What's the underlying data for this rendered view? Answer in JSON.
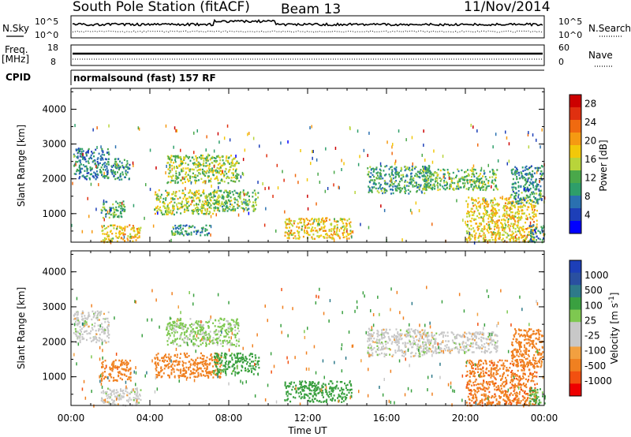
{
  "header": {
    "station": "South Pole Station (fitACF)",
    "beam": "Beam 13",
    "date": "11/Nov/2014"
  },
  "noise_panel": {
    "left_label": "N.Sky",
    "right_label": "N.Search",
    "left_ticks": [
      "10^5",
      "10^0"
    ],
    "right_ticks": [
      "10^5",
      "10^0"
    ]
  },
  "freq_panel": {
    "left_label": "Freq.",
    "left_unit": "[MHz]",
    "right_label": "Nave",
    "left_ticks": [
      "18",
      "8"
    ],
    "right_ticks": [
      "60",
      "0"
    ]
  },
  "cpid": {
    "label": "CPID",
    "program": "normalsound (fast) 157 RF"
  },
  "colors": {
    "scale_power": [
      "#0000ff",
      "#1d3fb8",
      "#2a70b0",
      "#2e9e6a",
      "#4aa84a",
      "#b8d43a",
      "#f2c80a",
      "#f59a12",
      "#f06a10",
      "#e03010",
      "#cc0000"
    ],
    "scale_velocity": [
      "#ee0000",
      "#f25010",
      "#f08020",
      "#f2a040",
      "#c8c8c8",
      "#c8c8c8",
      "#7ec850",
      "#3aa040",
      "#2e7a8a",
      "#2a50a0",
      "#1d3fb8"
    ]
  },
  "chart_data": [
    {
      "type": "heatmap",
      "name": "power",
      "ylabel": "Slant Range [km]",
      "xlabel": "",
      "x_ticks": [
        "00:00",
        "04:00",
        "08:00",
        "12:00",
        "16:00",
        "20:00",
        "00:00"
      ],
      "y_ticks": [
        1000,
        2000,
        3000,
        4000
      ],
      "ylim": [
        180,
        4600
      ],
      "xlim_hours": [
        0,
        24
      ],
      "colorbar": {
        "label": "Power [dB]",
        "ticks": [
          4,
          8,
          12,
          16,
          20,
          24,
          28
        ],
        "range": [
          0,
          30
        ]
      },
      "regions": [
        {
          "t0": 0.1,
          "t1": 1.9,
          "r0": 2000,
          "r1": 2900,
          "value": 7
        },
        {
          "t0": 1.5,
          "t1": 3.5,
          "r0": 200,
          "r1": 700,
          "value": 18
        },
        {
          "t0": 1.5,
          "t1": 2.7,
          "r0": 900,
          "r1": 1400,
          "value": 11
        },
        {
          "t0": 2.0,
          "t1": 3.0,
          "r0": 2000,
          "r1": 2600,
          "value": 8
        },
        {
          "t0": 4.8,
          "t1": 8.5,
          "r0": 1900,
          "r1": 2700,
          "value": 14
        },
        {
          "t0": 4.2,
          "t1": 7.6,
          "r0": 1000,
          "r1": 1700,
          "value": 15
        },
        {
          "t0": 7.2,
          "t1": 9.5,
          "r0": 1100,
          "r1": 1700,
          "value": 12
        },
        {
          "t0": 5.0,
          "t1": 7.0,
          "r0": 400,
          "r1": 700,
          "value": 9
        },
        {
          "t0": 10.8,
          "t1": 14.2,
          "r0": 300,
          "r1": 900,
          "value": 18
        },
        {
          "t0": 15.0,
          "t1": 18.2,
          "r0": 1600,
          "r1": 2400,
          "value": 10
        },
        {
          "t0": 17.8,
          "t1": 21.6,
          "r0": 1700,
          "r1": 2300,
          "value": 12
        },
        {
          "t0": 20.0,
          "t1": 23.6,
          "r0": 200,
          "r1": 1500,
          "value": 18
        },
        {
          "t0": 22.3,
          "t1": 23.9,
          "r0": 1300,
          "r1": 2400,
          "value": 9
        },
        {
          "t0": 23.2,
          "t1": 24.0,
          "r0": 200,
          "r1": 700,
          "value": 7
        }
      ]
    },
    {
      "type": "heatmap",
      "name": "velocity",
      "ylabel": "Slant Range [km]",
      "xlabel": "Time UT",
      "x_ticks": [
        "00:00",
        "04:00",
        "08:00",
        "12:00",
        "16:00",
        "20:00",
        "00:00"
      ],
      "y_ticks": [
        1000,
        2000,
        3000,
        4000
      ],
      "ylim": [
        180,
        4600
      ],
      "xlim_hours": [
        0,
        24
      ],
      "colorbar": {
        "label": "Velocity [m s^-1]",
        "ticks": [
          -1000,
          -500,
          -100,
          -25,
          25,
          100,
          500,
          1000
        ],
        "tick_labels": [
          "-1000",
          "-500",
          "-100",
          "-25",
          "25",
          "100",
          "500",
          "1000"
        ]
      },
      "regions": [
        {
          "t0": 0.1,
          "t1": 1.9,
          "r0": 2000,
          "r1": 2900,
          "value": 0
        },
        {
          "t0": 1.5,
          "t1": 3.5,
          "r0": 200,
          "r1": 700,
          "value": 0
        },
        {
          "t0": 1.5,
          "t1": 3.0,
          "r0": 900,
          "r1": 1500,
          "value": -150
        },
        {
          "t0": 4.8,
          "t1": 8.5,
          "r0": 1900,
          "r1": 2700,
          "value": 40
        },
        {
          "t0": 4.2,
          "t1": 7.6,
          "r0": 1000,
          "r1": 1700,
          "value": -300
        },
        {
          "t0": 7.2,
          "t1": 9.5,
          "r0": 1100,
          "r1": 1700,
          "value": 150
        },
        {
          "t0": 10.8,
          "t1": 14.2,
          "r0": 300,
          "r1": 900,
          "value": 250
        },
        {
          "t0": 15.0,
          "t1": 18.2,
          "r0": 1600,
          "r1": 2400,
          "value": 0
        },
        {
          "t0": 17.8,
          "t1": 21.6,
          "r0": 1700,
          "r1": 2300,
          "value": 0
        },
        {
          "t0": 20.0,
          "t1": 23.6,
          "r0": 200,
          "r1": 1500,
          "value": -400
        },
        {
          "t0": 22.3,
          "t1": 23.9,
          "r0": 1300,
          "r1": 2400,
          "value": -300
        },
        {
          "t0": 23.2,
          "t1": 24.0,
          "r0": 200,
          "r1": 700,
          "value": 120
        }
      ]
    }
  ]
}
